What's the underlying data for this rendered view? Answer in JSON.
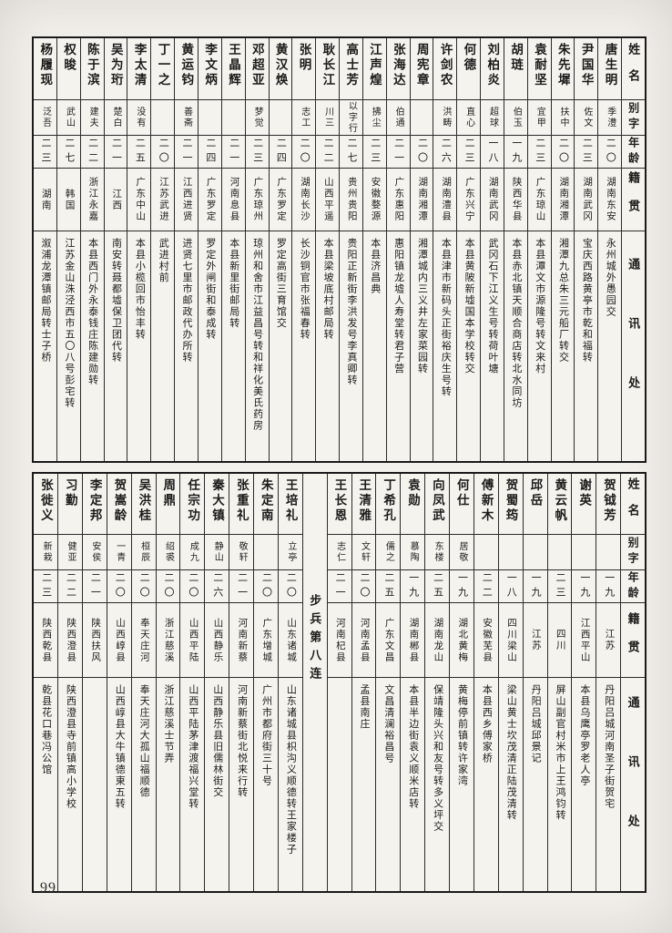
{
  "page_number": "99",
  "table_headers": {
    "name": "姓名",
    "courtesy": "别字",
    "age": "年龄",
    "origin": "籍贯",
    "address": "通讯处"
  },
  "roster_top": {
    "people": [
      {
        "name": "唐生明",
        "courtesy": "季澧",
        "age": "二〇",
        "origin": "湖南东安",
        "address": "永州城外愚园交"
      },
      {
        "name": "尹国华",
        "courtesy": "佐文",
        "age": "二三",
        "origin": "湖南武冈",
        "address": "宝庆西路黄亭市乾和福转"
      },
      {
        "name": "朱先墀",
        "courtesy": "扶中",
        "age": "二〇",
        "origin": "湖南湘潭",
        "address": "湘潭九总朱三元船厂转交"
      },
      {
        "name": "袁耐坚",
        "courtesy": "宜甲",
        "age": "二三",
        "origin": "广东琼山",
        "address": "本县潭文市源隆号转文来村"
      },
      {
        "name": "胡琏",
        "courtesy": "伯玉",
        "age": "一九",
        "origin": "陕西华县",
        "address": "本县赤北镇天顺合商店转北水同坊"
      },
      {
        "name": "刘柏炎",
        "courtesy": "超球",
        "age": "一八",
        "origin": "湖南武冈",
        "address": "武冈石下江义生号转荷叶塘"
      },
      {
        "name": "何德",
        "courtesy": "直心",
        "age": "二三",
        "origin": "广东兴宁",
        "address": "本县黄陂新墟国本学校转交"
      },
      {
        "name": "许剑农",
        "courtesy": "洪畴",
        "age": "二六",
        "origin": "湖南澧县",
        "address": "本县津市新码头正街裕庆生号转"
      },
      {
        "name": "周宪章",
        "courtesy": "",
        "age": "二〇",
        "origin": "湖南湘潭",
        "address": "湘潭城内三义井左家菜园转"
      },
      {
        "name": "张海达",
        "courtesy": "伯通",
        "age": "二一",
        "origin": "广东惠阳",
        "address": "惠阳镇龙墟人寿堂转君子营"
      },
      {
        "name": "江声煌",
        "courtesy": "拂尘",
        "age": "二三",
        "origin": "安徽婺源",
        "address": "本县济昌典"
      },
      {
        "name": "高士芳",
        "courtesy": "以字行",
        "age": "二七",
        "origin": "贵州贵阳",
        "address": "贵阳正新街李洪发号李真卿转"
      },
      {
        "name": "耿长江",
        "courtesy": "川三",
        "age": "二二",
        "origin": "山西平遥",
        "address": "本县梁坡底村邮局转"
      },
      {
        "name": "张明",
        "courtesy": "志工",
        "age": "二〇",
        "origin": "湖南长沙",
        "address": "长沙铜官市张福春转"
      },
      {
        "name": "黄汉焕",
        "courtesy": "",
        "age": "二四",
        "origin": "广东罗定",
        "address": "罗定高街三育馆交"
      },
      {
        "name": "邓超亚",
        "courtesy": "梦觉",
        "age": "二三",
        "origin": "广东琼州",
        "address": "琼州和舍市江益昌号转和祥化美氏药房"
      },
      {
        "name": "王晶辉",
        "courtesy": "",
        "age": "二一",
        "origin": "河南息县",
        "address": "本县新里街邮局转"
      },
      {
        "name": "李文炳",
        "courtesy": "",
        "age": "二四",
        "origin": "广东罗定",
        "address": "罗定外闸街和泰成转"
      },
      {
        "name": "黄运钧",
        "courtesy": "善斋",
        "age": "二一",
        "origin": "江西进贤",
        "address": "进贤七里市邮政代办所转"
      },
      {
        "name": "丁一之",
        "courtesy": "",
        "age": "二〇",
        "origin": "江苏武进",
        "address": "武进村前"
      },
      {
        "name": "李太清",
        "courtesy": "没有",
        "age": "二五",
        "origin": "广东中山",
        "address": "本县小榄回市怡丰转"
      },
      {
        "name": "吴为珩",
        "courtesy": "楚白",
        "age": "二一",
        "origin": "江西",
        "address": "南安转聂都墟保卫团代转"
      },
      {
        "name": "陈于滨",
        "courtesy": "建夫",
        "age": "二二",
        "origin": "浙江永嘉",
        "address": "本县西门外永泰钱庄陈建勋转"
      },
      {
        "name": "权晙",
        "courtesy": "武山",
        "age": "二七",
        "origin": "韩国",
        "address": "江苏金山洙泾西市五〇八号彭宅转"
      },
      {
        "name": "杨履现",
        "courtesy": "泛吾",
        "age": "二三",
        "origin": "湖南",
        "address": "溆浦龙潭镇邮局转士子桥"
      }
    ]
  },
  "roster_bottom": {
    "section_label": "步兵第八连",
    "people_right": [
      {
        "name": "贺钺芳",
        "courtesy": "",
        "age": "一九",
        "origin": "江苏",
        "address": "丹阳吕城河南圣子街贺宅"
      },
      {
        "name": "谢英",
        "courtesy": "",
        "age": "一九",
        "origin": "江西平山",
        "address": "本县乌鹰亭罗老人亭"
      },
      {
        "name": "黄云帆",
        "courtesy": "",
        "age": "二三",
        "origin": "四川",
        "address": "屏山副官村米市上王鸿钧转"
      },
      {
        "name": "邱岳",
        "courtesy": "",
        "age": "一九",
        "origin": "江苏",
        "address": "丹阳吕城邱景记"
      },
      {
        "name": "贺蜀筠",
        "courtesy": "",
        "age": "一八",
        "origin": "四川梁山",
        "address": "梁山黄士坎茂清正陆茂清转"
      },
      {
        "name": "傅新木",
        "courtesy": "",
        "age": "二二",
        "origin": "安徽芜县",
        "address": "本县西乡傅家桥"
      },
      {
        "name": "何仕",
        "courtesy": "居敬",
        "age": "一九",
        "origin": "湖北黄梅",
        "address": "黄梅停前镇转许家湾"
      },
      {
        "name": "向凤武",
        "courtesy": "东楼",
        "age": "二五",
        "origin": "湖南龙山",
        "address": "保靖隆头兴和友号转多义坪交"
      },
      {
        "name": "袁勋",
        "courtesy": "慕陶",
        "age": "一九",
        "origin": "湖南郴县",
        "address": "本县半边街袁义顺米店转"
      },
      {
        "name": "丁希孔",
        "courtesy": "儒之",
        "age": "二五",
        "origin": "广东文昌",
        "address": "文昌清澜裕昌号"
      },
      {
        "name": "王清雅",
        "courtesy": "文轩",
        "age": "二〇",
        "origin": "河南孟县",
        "address": "孟县南庄"
      },
      {
        "name": "王长恩",
        "courtesy": "志仁",
        "age": "二一",
        "origin": "河南杞县",
        "address": ""
      }
    ],
    "people_left": [
      {
        "name": "王培礼",
        "courtesy": "立亭",
        "age": "二〇",
        "origin": "山东诸城",
        "address": "山东诸城县枳沟义顺德转王家楼子"
      },
      {
        "name": "朱定南",
        "courtesy": "",
        "age": "二〇",
        "origin": "广东增城",
        "address": "广州市都府街三十号"
      },
      {
        "name": "张重礼",
        "courtesy": "敬轩",
        "age": "二一",
        "origin": "河南新蔡",
        "address": "河南新蔡街北悦来行转"
      },
      {
        "name": "秦大镇",
        "courtesy": "静山",
        "age": "二六",
        "origin": "山西静乐",
        "address": "山西静乐县旧儒林街交"
      },
      {
        "name": "任宗功",
        "courtesy": "成九",
        "age": "二〇",
        "origin": "山西平陆",
        "address": "山西平陆茅津渡福兴堂转"
      },
      {
        "name": "周鼎",
        "courtesy": "绍裘",
        "age": "二〇",
        "origin": "浙江慈溪",
        "address": "浙江慈溪士节弄"
      },
      {
        "name": "吴洪桂",
        "courtesy": "桓辰",
        "age": "二〇",
        "origin": "奉天庄河",
        "address": "奉天庄河大孤山福顺德"
      },
      {
        "name": "贺嵩龄",
        "courtesy": "一青",
        "age": "二〇",
        "origin": "山西崞县",
        "address": "山西崞县大牛镇德東五转"
      },
      {
        "name": "李定邦",
        "courtesy": "安侯",
        "age": "二一",
        "origin": "陕西扶风",
        "address": ""
      },
      {
        "name": "习勤",
        "courtesy": "健亚",
        "age": "二二",
        "origin": "陕西澄县",
        "address": "陕西澄县寺前镇高小学校"
      },
      {
        "name": "张徙义",
        "courtesy": "新栽",
        "age": "二三",
        "origin": "陕西乾县",
        "address": "乾县花口巷冯公馆"
      }
    ]
  }
}
